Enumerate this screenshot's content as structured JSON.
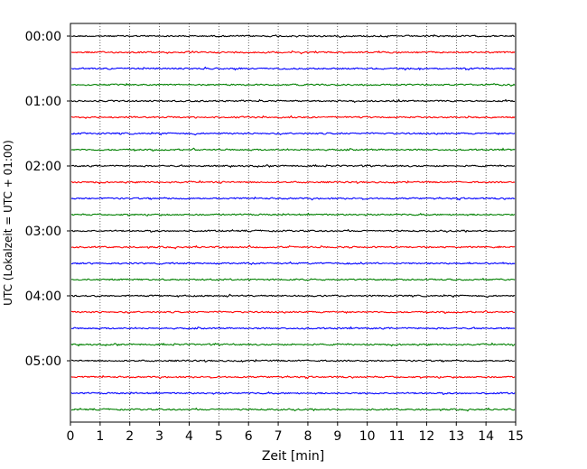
{
  "chart_data": {
    "type": "line",
    "title": "",
    "xlabel": "Zeit  [min]",
    "ylabel": "UTC (Lokalzeit = UTC + 01:00)",
    "xlim": [
      0,
      15
    ],
    "x_ticks": [
      "0",
      "1",
      "2",
      "3",
      "4",
      "5",
      "6",
      "7",
      "8",
      "9",
      "10",
      "11",
      "12",
      "13",
      "14",
      "15"
    ],
    "y_ticks": [
      "00:00",
      "01:00",
      "02:00",
      "03:00",
      "04:00",
      "05:00"
    ],
    "grid": "vertical dotted at each minute",
    "trace_interval_min": 15,
    "trace_count": 24,
    "color_cycle": [
      "#000000",
      "#ff0000",
      "#0000ff",
      "#008000"
    ],
    "series": [
      {
        "start": "00:00",
        "color": "#000000"
      },
      {
        "start": "00:15",
        "color": "#ff0000"
      },
      {
        "start": "00:30",
        "color": "#0000ff"
      },
      {
        "start": "00:45",
        "color": "#008000"
      },
      {
        "start": "01:00",
        "color": "#000000"
      },
      {
        "start": "01:15",
        "color": "#ff0000"
      },
      {
        "start": "01:30",
        "color": "#0000ff"
      },
      {
        "start": "01:45",
        "color": "#008000"
      },
      {
        "start": "02:00",
        "color": "#000000"
      },
      {
        "start": "02:15",
        "color": "#ff0000"
      },
      {
        "start": "02:30",
        "color": "#0000ff"
      },
      {
        "start": "02:45",
        "color": "#008000"
      },
      {
        "start": "03:00",
        "color": "#000000"
      },
      {
        "start": "03:15",
        "color": "#ff0000"
      },
      {
        "start": "03:30",
        "color": "#0000ff"
      },
      {
        "start": "03:45",
        "color": "#008000"
      },
      {
        "start": "04:00",
        "color": "#000000"
      },
      {
        "start": "04:15",
        "color": "#ff0000"
      },
      {
        "start": "04:30",
        "color": "#0000ff"
      },
      {
        "start": "04:45",
        "color": "#008000"
      },
      {
        "start": "05:00",
        "color": "#000000"
      },
      {
        "start": "05:15",
        "color": "#ff0000"
      },
      {
        "start": "05:30",
        "color": "#0000ff"
      },
      {
        "start": "05:45",
        "color": "#008000"
      }
    ]
  }
}
